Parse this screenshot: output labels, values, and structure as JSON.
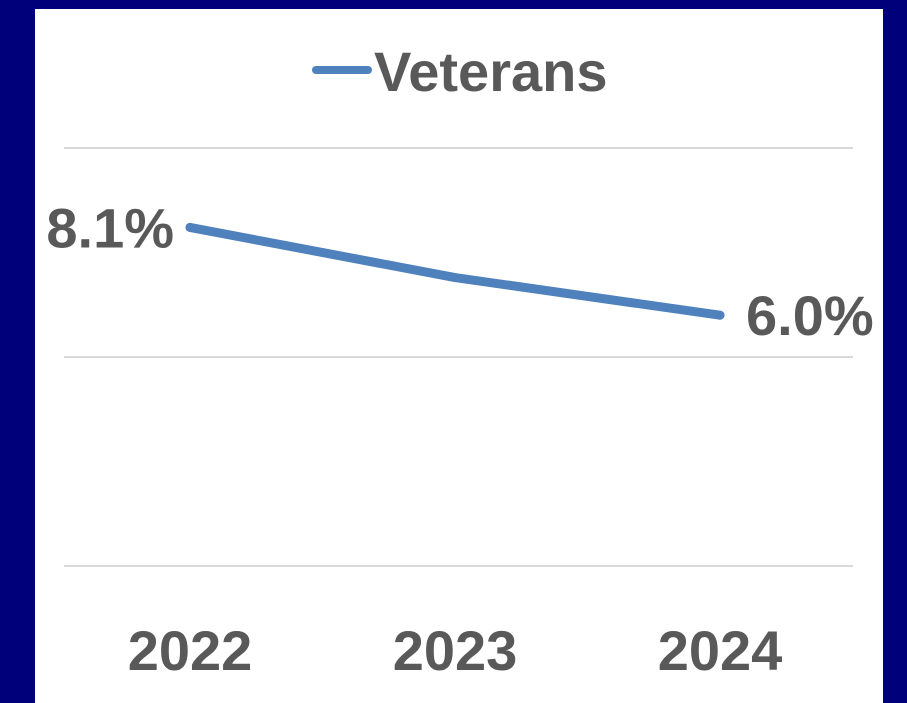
{
  "colors": {
    "background": "#00007a",
    "panel": "#ffffff",
    "series": "#4f81bd",
    "text": "#595959",
    "gridline": "#d9d9d9"
  },
  "chart_data": {
    "type": "line",
    "title": "",
    "xlabel": "",
    "ylabel": "",
    "categories": [
      "2022",
      "2023",
      "2024"
    ],
    "series": [
      {
        "name": "Veterans",
        "values": [
          8.1,
          6.9,
          6.0
        ]
      }
    ],
    "data_labels": [
      {
        "category": "2022",
        "text": "8.1%"
      },
      {
        "category": "2024",
        "text": "6.0%"
      }
    ],
    "ylim": [
      0,
      10
    ],
    "y_gridlines": [
      0,
      5,
      10
    ],
    "y_tick_labels_visible": false,
    "grid": true,
    "legend": "top-center"
  }
}
